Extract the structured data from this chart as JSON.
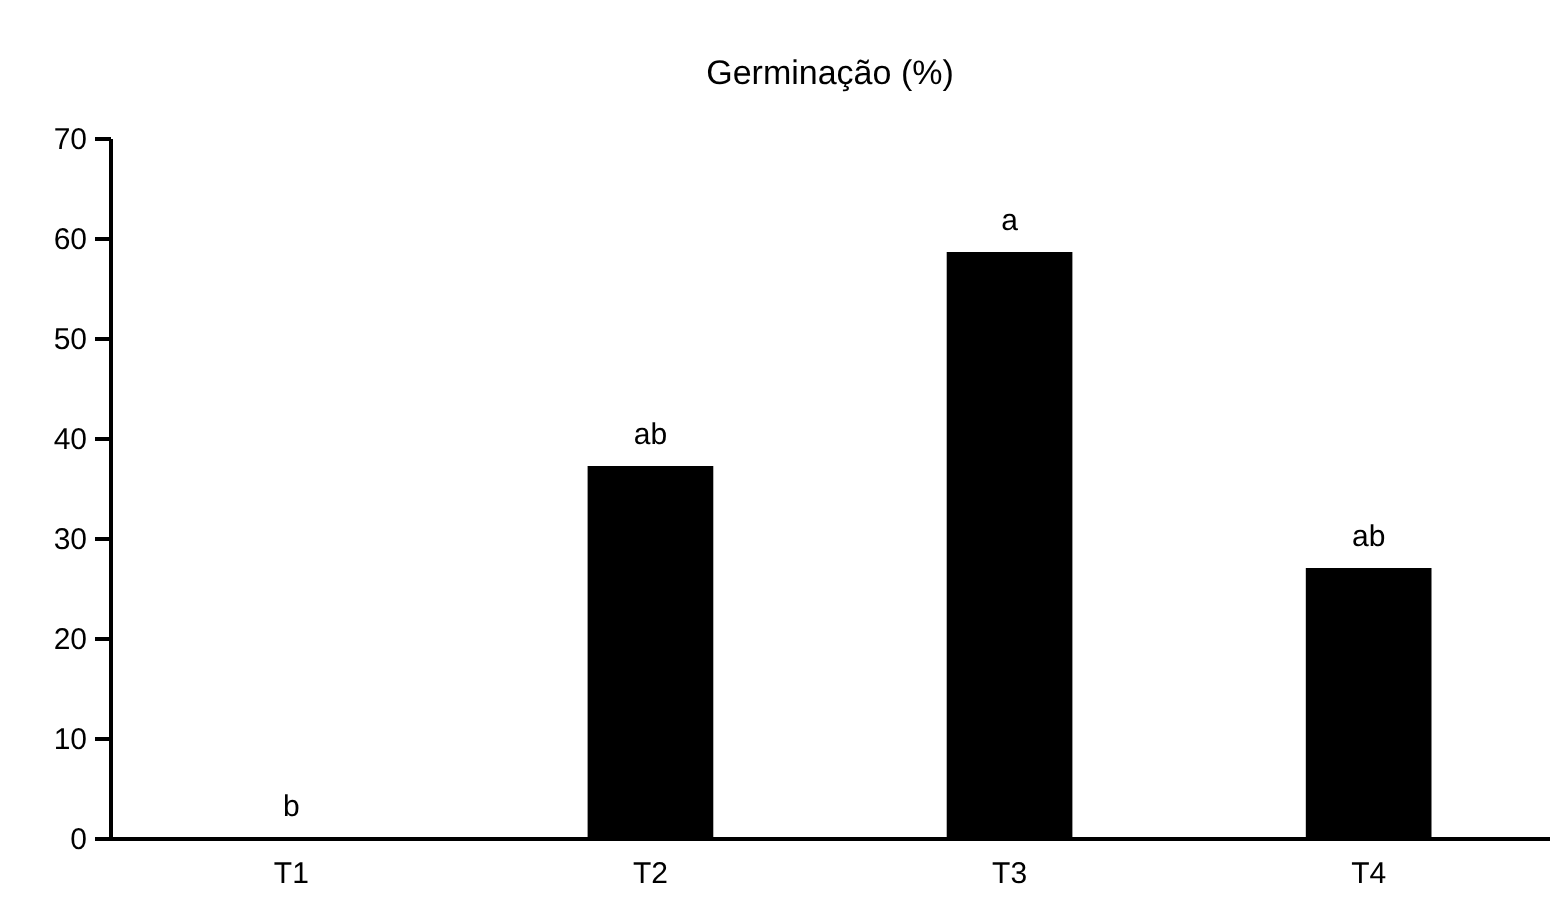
{
  "chart_data": {
    "type": "bar",
    "title": "Germinação (%)",
    "categories": [
      "T1",
      "T2",
      "T3",
      "T4"
    ],
    "values": [
      0,
      37.2,
      58.6,
      27.0
    ],
    "color": "#000000",
    "ylim": [
      0,
      70
    ],
    "yticks": [
      0,
      10,
      20,
      30,
      40,
      50,
      60,
      70
    ],
    "grid": false,
    "annotations": [
      {
        "text": "b",
        "x": "T1",
        "y": 0
      },
      {
        "text": "ab",
        "x": "T2",
        "y": 37.2
      },
      {
        "text": "a",
        "x": "T3",
        "y": 58.6
      },
      {
        "text": "ab",
        "x": "T4",
        "y": 27.0
      }
    ]
  }
}
